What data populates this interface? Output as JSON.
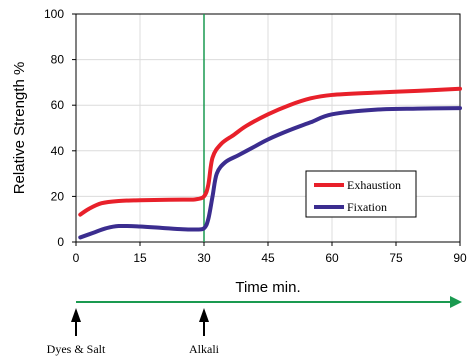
{
  "chart_data": {
    "type": "line",
    "xlabel": "Time min.",
    "ylabel": "Relative Strength %",
    "xlim": [
      0,
      90
    ],
    "ylim": [
      0,
      100
    ],
    "xticks": [
      "0",
      "15",
      "30",
      "45",
      "60",
      "75",
      "90"
    ],
    "yticks": [
      "0",
      "20",
      "40",
      "60",
      "80",
      "100"
    ],
    "grid": true,
    "legend_position": "lower-right",
    "vline_x": 30,
    "series": [
      {
        "name": "Exhaustion",
        "color": "#e8202a",
        "x": [
          1,
          3,
          6,
          10,
          15,
          20,
          25,
          28,
          30,
          31,
          32,
          34,
          37,
          40,
          45,
          50,
          55,
          60,
          70,
          80,
          90
        ],
        "y": [
          12,
          14.5,
          17,
          18,
          18.3,
          18.5,
          18.6,
          18.7,
          20,
          25,
          37,
          43,
          47,
          51,
          56,
          60,
          63,
          64.5,
          65.5,
          66.3,
          67.2
        ]
      },
      {
        "name": "Fixation",
        "color": "#3b2d8f",
        "x": [
          1,
          4,
          7,
          10,
          15,
          20,
          25,
          28,
          30,
          31,
          32,
          33,
          35,
          38,
          42,
          45,
          50,
          55,
          60,
          70,
          80,
          90
        ],
        "y": [
          2,
          4,
          6,
          7,
          6.8,
          6.2,
          5.6,
          5.5,
          6,
          10,
          20,
          30,
          35,
          38,
          42,
          45,
          49,
          52.5,
          56,
          58,
          58.5,
          58.7
        ]
      }
    ],
    "process_axis": {
      "markers": [
        {
          "x": 0,
          "label": "Dyes & Salt"
        },
        {
          "x": 30,
          "label": "Alkali"
        }
      ]
    }
  },
  "colors": {
    "vline": "#1a9a50",
    "process_arrow": "#1a9a50",
    "grid": "#dcdcdc",
    "frame": "#000000"
  }
}
